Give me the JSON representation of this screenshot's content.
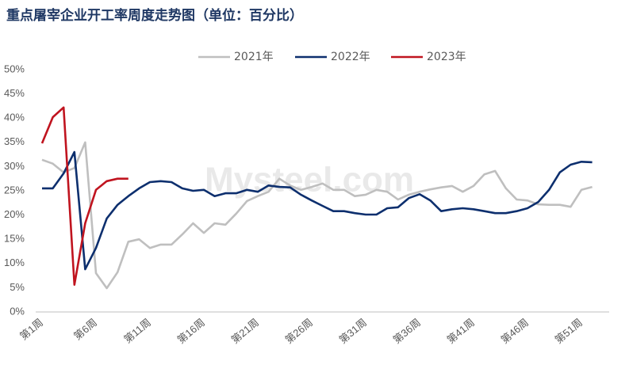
{
  "chart_data": {
    "type": "line",
    "title": "重点屠宰企业开工率周度走势图（单位：百分比）",
    "watermark": "Mysteel.com",
    "categories": [
      "第1周",
      null,
      null,
      null,
      null,
      "第6周",
      null,
      null,
      null,
      null,
      "第11周",
      null,
      null,
      null,
      null,
      "第16周",
      null,
      null,
      null,
      null,
      "第21周",
      null,
      null,
      null,
      null,
      "第26周",
      null,
      null,
      null,
      null,
      "第31周",
      null,
      null,
      null,
      null,
      "第36周",
      null,
      null,
      null,
      null,
      "第41周",
      null,
      null,
      null,
      null,
      "第46周",
      null,
      null,
      null,
      null,
      "第51周",
      null
    ],
    "series": [
      {
        "name": "2021年",
        "color": "#bfbfbf",
        "values": [
          31.4,
          30.6,
          28.8,
          29.7,
          35.0,
          8.0,
          4.9,
          8.2,
          14.5,
          15.0,
          13.2,
          13.9,
          13.9,
          16.0,
          18.3,
          16.3,
          18.3,
          18.0,
          20.3,
          22.9,
          23.9,
          24.8,
          27.5,
          26.1,
          25.2,
          25.8,
          26.5,
          25.2,
          25.2,
          23.9,
          24.2,
          25.2,
          24.8,
          23.2,
          24.2,
          24.8,
          25.3,
          25.7,
          26.0,
          24.8,
          26.0,
          28.4,
          29.1,
          25.5,
          23.2,
          23.0,
          22.2,
          22.1,
          22.1,
          21.7,
          25.2,
          25.8
        ]
      },
      {
        "name": "2022年",
        "color": "#0d2f6e",
        "values": [
          25.5,
          25.5,
          28.6,
          33.0,
          8.8,
          13.2,
          19.3,
          22.1,
          23.9,
          25.5,
          26.8,
          27.0,
          26.8,
          25.5,
          25.0,
          25.2,
          23.9,
          24.5,
          24.5,
          25.2,
          24.8,
          26.1,
          25.8,
          25.7,
          24.2,
          23.0,
          21.9,
          20.8,
          20.8,
          20.4,
          20.1,
          20.1,
          21.4,
          21.6,
          23.5,
          24.3,
          23.0,
          20.8,
          21.2,
          21.4,
          21.2,
          20.8,
          20.4,
          20.4,
          20.8,
          21.4,
          22.7,
          25.2,
          28.8,
          30.4,
          31.0,
          30.9
        ]
      },
      {
        "name": "2023年",
        "color": "#c0141f",
        "values": [
          34.8,
          40.2,
          42.2,
          5.6,
          18.3,
          25.2,
          27.0,
          27.5,
          27.5,
          null,
          null,
          null,
          null,
          null,
          null,
          null,
          null,
          null,
          null,
          null,
          null,
          null,
          null,
          null,
          null,
          null,
          null,
          null,
          null,
          null,
          null,
          null,
          null,
          null,
          null,
          null,
          null,
          null,
          null,
          null,
          null,
          null,
          null,
          null,
          null,
          null,
          null,
          null,
          null,
          null,
          null,
          null
        ]
      }
    ],
    "ylim": [
      0,
      50
    ],
    "yticks": [
      {
        "value": 0,
        "label": "0%"
      },
      {
        "value": 5,
        "label": "5%"
      },
      {
        "value": 10,
        "label": "10%"
      },
      {
        "value": 15,
        "label": "15%"
      },
      {
        "value": 20,
        "label": "20%"
      },
      {
        "value": 25,
        "label": "25%"
      },
      {
        "value": 30,
        "label": "30%"
      },
      {
        "value": 35,
        "label": "35%"
      },
      {
        "value": 40,
        "label": "40%"
      },
      {
        "value": 45,
        "label": "45%"
      },
      {
        "value": 50,
        "label": "50%"
      }
    ],
    "grid": false
  }
}
